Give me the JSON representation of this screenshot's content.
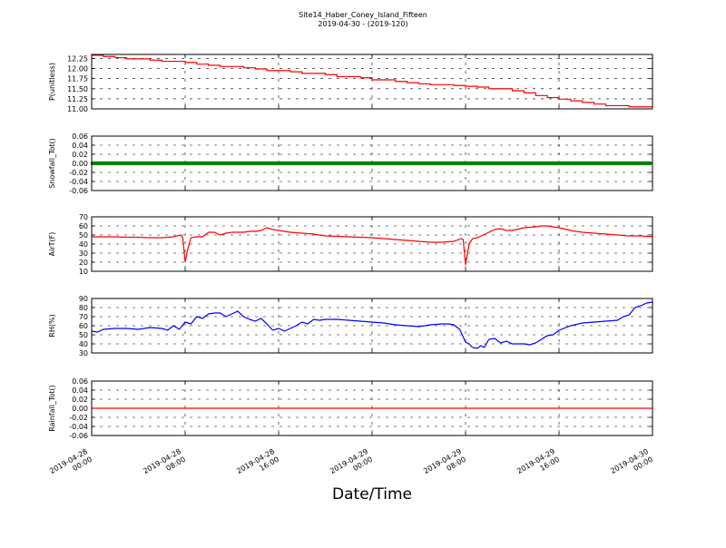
{
  "title": "Site14_Haber_Coney_Island_Fifteen",
  "subtitle": "2019-04-30 - (2019-120)",
  "xlabel": "Date/Time",
  "x_ticks": [
    [
      "2019-04-28",
      "00:00"
    ],
    [
      "2019-04-28",
      "08:00"
    ],
    [
      "2019-04-28",
      "16:00"
    ],
    [
      "2019-04-29",
      "00:00"
    ],
    [
      "2019-04-29",
      "08:00"
    ],
    [
      "2019-04-29",
      "16:00"
    ],
    [
      "2019-04-30",
      "00:00"
    ]
  ],
  "chart_data": [
    {
      "type": "line",
      "ylabel": "P(unitless)",
      "ylim": [
        11.0,
        12.35
      ],
      "yticks": [
        "11.00",
        "11.25",
        "11.50",
        "11.75",
        "12.00",
        "12.25"
      ],
      "xlim_hours": [
        0,
        48
      ],
      "grid": true,
      "color": "#ff0000",
      "step": true,
      "x_hours": [
        0,
        1,
        2,
        3,
        5,
        6,
        8,
        9,
        10,
        11,
        13,
        14,
        15,
        17,
        18,
        20,
        21,
        23,
        24,
        26,
        27,
        28,
        29,
        31,
        32,
        33,
        34,
        36,
        37,
        38,
        39,
        40,
        41,
        42,
        43,
        44,
        46,
        48
      ],
      "values": [
        12.33,
        12.3,
        12.27,
        12.24,
        12.21,
        12.18,
        12.15,
        12.11,
        12.08,
        12.05,
        12.02,
        11.99,
        11.95,
        11.92,
        11.88,
        11.85,
        11.8,
        11.77,
        11.72,
        11.68,
        11.65,
        11.62,
        11.6,
        11.58,
        11.56,
        11.54,
        11.5,
        11.45,
        11.4,
        11.33,
        11.28,
        11.24,
        11.2,
        11.16,
        11.12,
        11.08,
        11.05,
        11.04
      ]
    },
    {
      "type": "line",
      "ylabel": "Snowfall_Tot()",
      "ylim": [
        -0.06,
        0.06
      ],
      "yticks": [
        "-0.06",
        "-0.04",
        "-0.02",
        "0.00",
        "0.02",
        "0.04",
        "0.06"
      ],
      "xlim_hours": [
        0,
        48
      ],
      "grid": true,
      "color": "#008000",
      "markers": true,
      "x_hours": [
        0,
        48
      ],
      "values": [
        0.0,
        0.0
      ]
    },
    {
      "type": "line",
      "ylabel": "AirT(F)",
      "ylim": [
        10,
        70
      ],
      "yticks": [
        "10",
        "20",
        "30",
        "40",
        "50",
        "60",
        "70"
      ],
      "xlim_hours": [
        0,
        48
      ],
      "grid": true,
      "color": "#ff0000",
      "x_hours": [
        0,
        1,
        2,
        3,
        4,
        5,
        6,
        7,
        7.6,
        7.8,
        8.0,
        8.2,
        8.5,
        9,
        9.5,
        10,
        10.5,
        11,
        11.5,
        12,
        12.5,
        13,
        13.5,
        14,
        14.5,
        15,
        15.5,
        16,
        17,
        18,
        19,
        20,
        21,
        22,
        23,
        24,
        25,
        26,
        27,
        28,
        29,
        30,
        31,
        31.6,
        31.8,
        32.0,
        32.3,
        32.6,
        33,
        33.5,
        34,
        34.5,
        35,
        35.5,
        36,
        37,
        38,
        38.5,
        39,
        40,
        41,
        42,
        43,
        44,
        45,
        46,
        47,
        48
      ],
      "values": [
        48,
        48,
        48,
        47.5,
        47.5,
        47,
        47,
        48,
        50,
        47,
        20,
        33,
        47,
        48,
        48,
        53,
        53,
        50,
        52,
        53,
        53,
        53,
        54,
        54,
        55,
        58,
        56,
        55,
        53,
        52,
        51,
        49,
        48.5,
        48,
        47.5,
        47,
        46,
        45,
        44,
        43,
        42,
        42,
        43,
        46,
        45,
        17,
        40,
        46,
        47,
        50,
        53,
        56,
        57,
        55,
        55,
        58,
        59,
        60,
        60,
        58,
        55,
        53,
        52,
        51,
        50,
        49,
        49,
        48
      ]
    },
    {
      "type": "line",
      "ylabel": "RH(%)",
      "ylim": [
        30,
        90
      ],
      "yticks": [
        "30",
        "40",
        "50",
        "60",
        "70",
        "80",
        "90"
      ],
      "xlim_hours": [
        0,
        48
      ],
      "grid": true,
      "color": "#0000ff",
      "x_hours": [
        0,
        0.5,
        1,
        2,
        3,
        4,
        5,
        6,
        6.5,
        7,
        7.5,
        8,
        8.5,
        9,
        9.5,
        10,
        10.5,
        11,
        11.5,
        12,
        12.5,
        13,
        13.5,
        14,
        14.5,
        15,
        15.5,
        16,
        16.5,
        17,
        17.5,
        18,
        18.5,
        19,
        19.5,
        20,
        21,
        22,
        23,
        24,
        25,
        26,
        27,
        28,
        29,
        30,
        30.5,
        31,
        31.5,
        32,
        32.3,
        32.6,
        33,
        33.3,
        33.6,
        34,
        34.5,
        35,
        35.5,
        36,
        36.5,
        37,
        37.5,
        38,
        39,
        39.5,
        40,
        41,
        42,
        43,
        44,
        45,
        45.5,
        46,
        46.5,
        47,
        47.5,
        48
      ],
      "values": [
        54,
        53,
        56,
        57,
        57,
        56,
        58,
        57,
        55,
        60,
        56,
        64,
        62,
        70,
        68,
        73,
        74,
        74,
        70,
        73,
        76,
        70,
        67,
        65,
        68,
        62,
        55,
        57,
        54,
        57,
        60,
        64,
        62,
        67,
        66,
        67,
        67,
        66,
        65,
        64,
        63,
        61,
        60,
        59,
        61,
        62,
        62,
        61,
        56,
        42,
        40,
        36,
        35,
        38,
        36,
        45,
        46,
        41,
        43,
        40,
        40,
        40,
        39,
        41,
        49,
        50,
        55,
        60,
        63,
        64,
        65,
        66,
        70,
        72,
        80,
        82,
        85,
        86
      ]
    },
    {
      "type": "line",
      "ylabel": "Rainfall_Tot()",
      "ylim": [
        -0.06,
        0.06
      ],
      "yticks": [
        "-0.06",
        "-0.04",
        "-0.02",
        "0.00",
        "0.02",
        "0.04",
        "0.06"
      ],
      "xlim_hours": [
        0,
        48
      ],
      "grid": true,
      "color": "#ff0000",
      "x_hours": [
        0,
        48
      ],
      "values": [
        0.0,
        0.0
      ]
    }
  ]
}
